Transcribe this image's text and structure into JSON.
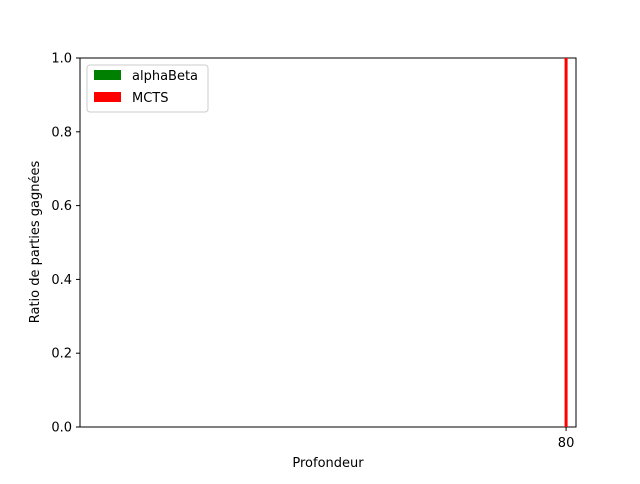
{
  "chart_data": {
    "type": "bar",
    "title": "",
    "xlabel": "Profondeur",
    "ylabel": "Ratio de parties gagnées",
    "categories": [
      80
    ],
    "x_ticks": [
      "80"
    ],
    "y_ticks": [
      "0.0",
      "0.2",
      "0.4",
      "0.6",
      "0.8",
      "1.0"
    ],
    "ylim": [
      0,
      1.0
    ],
    "stacked": true,
    "grid": false,
    "legend_position": "upper-left",
    "series": [
      {
        "name": "alphaBeta",
        "color": "#008000",
        "values": [
          0.0
        ]
      },
      {
        "name": "MCTS",
        "color": "#ff0000",
        "values": [
          1.0
        ]
      }
    ]
  }
}
